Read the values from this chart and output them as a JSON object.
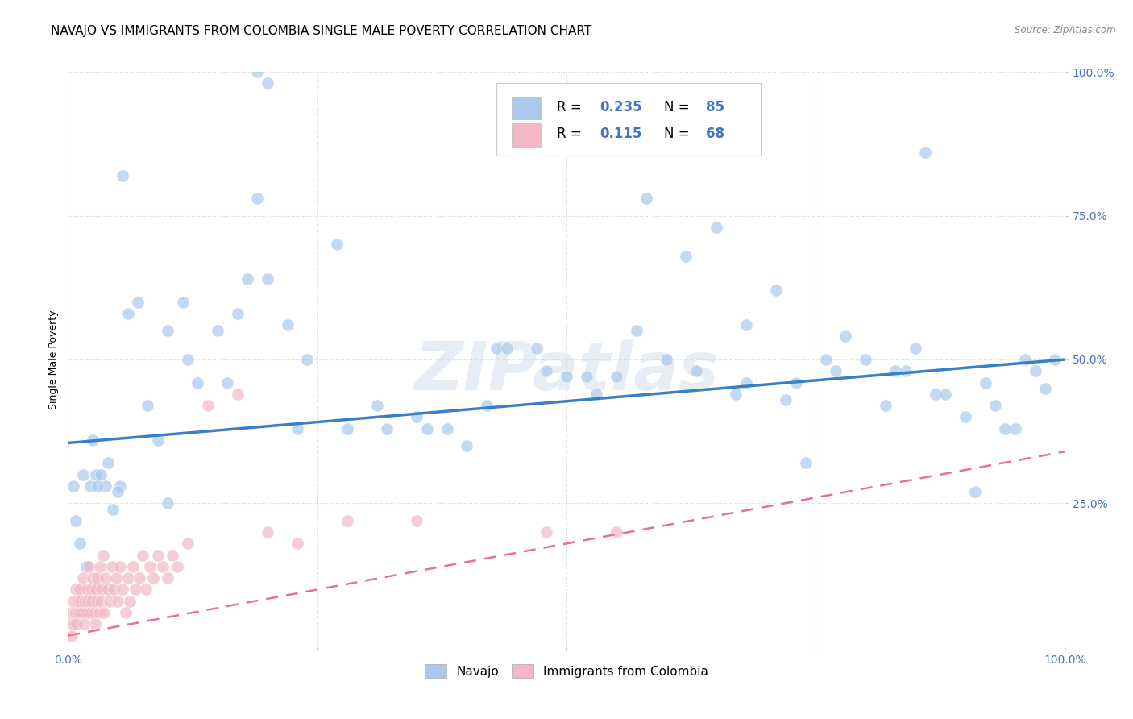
{
  "title": "NAVAJO VS IMMIGRANTS FROM COLOMBIA SINGLE MALE POVERTY CORRELATION CHART",
  "source": "Source: ZipAtlas.com",
  "ylabel": "Single Male Poverty",
  "xlim": [
    0,
    1
  ],
  "ylim": [
    0,
    1
  ],
  "xticks": [
    0,
    0.25,
    0.5,
    0.75,
    1.0
  ],
  "xticklabels": [
    "0.0%",
    "",
    "",
    "",
    "100.0%"
  ],
  "yticks": [
    0.25,
    0.5,
    0.75,
    1.0
  ],
  "yticklabels": [
    "25.0%",
    "50.0%",
    "75.0%",
    "100.0%"
  ],
  "navajo_color": "#A8CAEC",
  "colombia_color": "#F2B8C6",
  "navajo_R": 0.235,
  "navajo_N": 85,
  "colombia_R": 0.115,
  "colombia_N": 68,
  "navajo_line_color": "#3A7EC8",
  "colombia_line_color": "#E87090",
  "watermark_color": "#C8D8E8",
  "background_color": "#FFFFFF",
  "grid_color": "#CCCCCC",
  "title_fontsize": 11,
  "axis_label_fontsize": 9,
  "tick_fontsize": 10,
  "legend_R_N_color": "#4472C4",
  "legend_box_edge": "#CCCCCC",
  "navajo_line_intercept": 0.355,
  "navajo_line_slope": 0.145,
  "colombia_line_intercept": 0.02,
  "colombia_line_slope": 0.32
}
